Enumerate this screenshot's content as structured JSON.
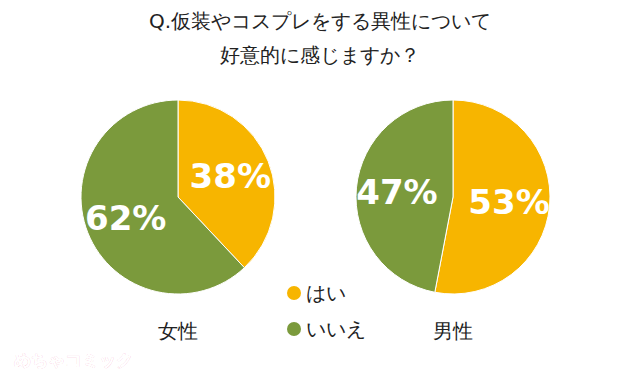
{
  "chart_data": {
    "type": "pie",
    "title": "Q.仮装やコスプレをする異性について\n好意的に感じますか？",
    "categories": [
      "はい",
      "いいえ"
    ],
    "colors": [
      "#f7b500",
      "#7b9a3c"
    ],
    "series": [
      {
        "name": "女性",
        "values": [
          38,
          62
        ],
        "value_labels": [
          "38%",
          "62%"
        ]
      },
      {
        "name": "男性",
        "values": [
          53,
          47
        ],
        "value_labels": [
          "53%",
          "47%"
        ]
      }
    ],
    "data_labels": true,
    "legend": "bottom",
    "annotations": [
      "めちゃコミック"
    ]
  }
}
